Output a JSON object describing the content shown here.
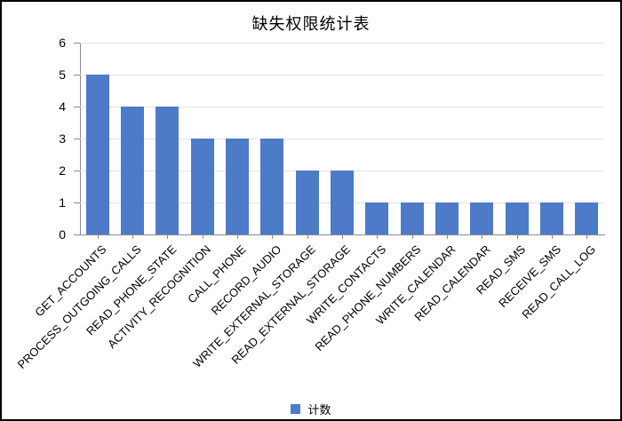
{
  "title": "缺失权限统计表",
  "legend": {
    "label": "计数"
  },
  "chart_data": {
    "type": "bar",
    "title": "缺失权限统计表",
    "categories": [
      "GET_ACCOUNTS",
      "PROCESS_OUTGOING_CALLS",
      "READ_PHONE_STATE",
      "ACTIVITY_RECOGNITION",
      "CALL_PHONE",
      "RECORD_AUDIO",
      "WRITE_EXTERNAL_STORAGE",
      "READ_EXTERNAL_STORAGE",
      "WRITE_CONTACTS",
      "READ_PHONE_NUMBERS",
      "WRITE_CALENDAR",
      "READ_CALENDAR",
      "READ_SMS",
      "RECEIVE_SMS",
      "READ_CALL_LOG"
    ],
    "series": [
      {
        "name": "计数",
        "values": [
          5,
          4,
          4,
          3,
          3,
          3,
          2,
          2,
          1,
          1,
          1,
          1,
          1,
          1,
          1
        ]
      }
    ],
    "xlabel": "",
    "ylabel": "",
    "ylim": [
      0,
      6
    ],
    "yticks": [
      0,
      1,
      2,
      3,
      4,
      5,
      6
    ],
    "grid": true,
    "legend_position": "bottom",
    "colors": {
      "bar": "#4D7BC8",
      "gridline": "#E3E3E3",
      "axis": "#8C8C8C",
      "text": "#000000"
    }
  }
}
